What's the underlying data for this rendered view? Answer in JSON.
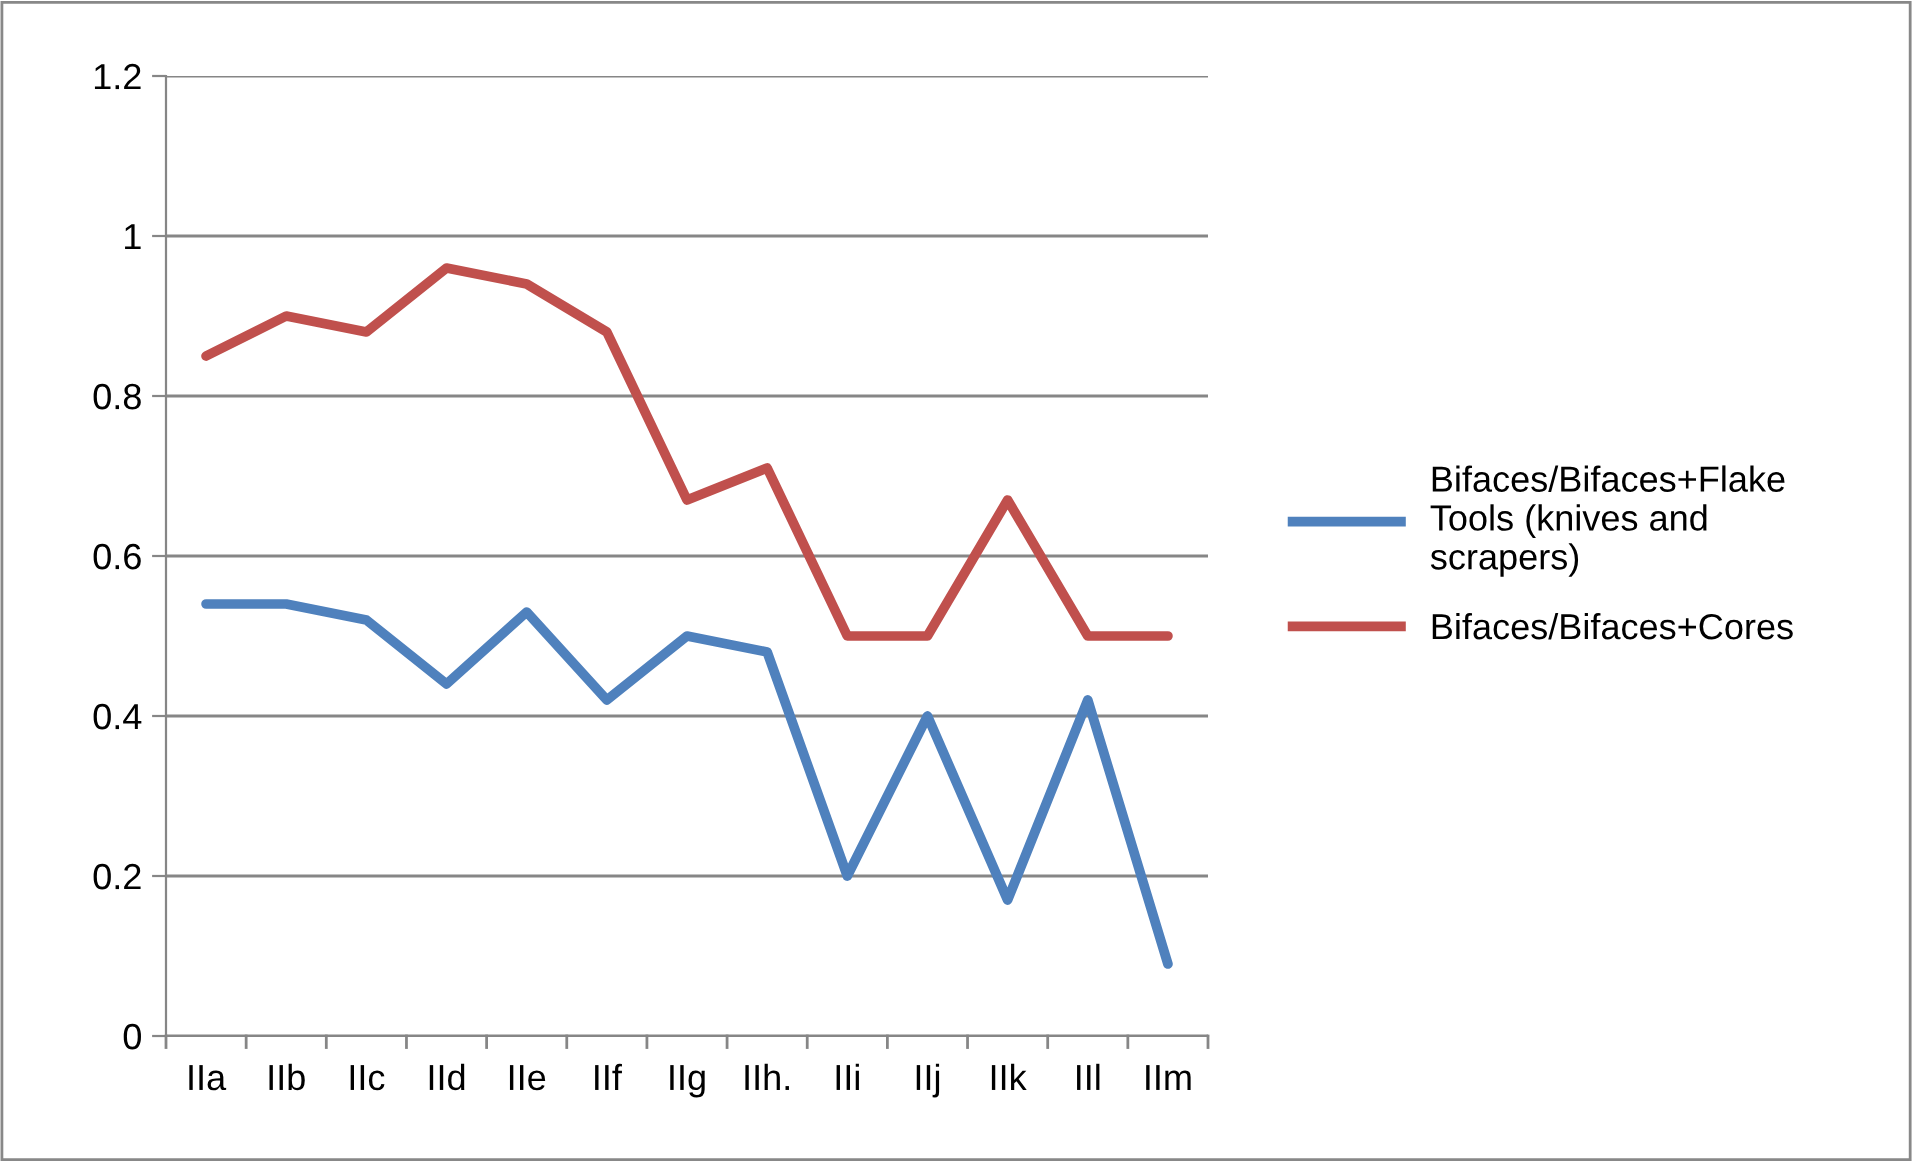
{
  "chart_data": {
    "type": "line",
    "categories": [
      "IIa",
      "IIb",
      "IIc",
      "IId",
      "IIe",
      "IIf",
      "IIg",
      "IIh.",
      "IIi",
      "IIj",
      "IIk",
      "IIl",
      "IIm"
    ],
    "series": [
      {
        "name": "Bifaces/Bifaces+Flake Tools (knives and scrapers)",
        "color": "#4f81bd",
        "values": [
          0.54,
          0.54,
          0.52,
          0.44,
          0.53,
          0.42,
          0.5,
          0.48,
          0.2,
          0.4,
          0.17,
          0.42,
          0.09
        ]
      },
      {
        "name": "Bifaces/Bifaces+Cores",
        "color": "#c0504d",
        "values": [
          0.85,
          0.9,
          0.88,
          0.96,
          0.94,
          0.88,
          0.67,
          0.71,
          0.5,
          0.5,
          0.67,
          0.5,
          0.5
        ]
      }
    ],
    "ylim": [
      0,
      1.2
    ],
    "yticks": [
      0,
      0.2,
      0.4,
      0.6,
      0.8,
      1,
      1.2
    ],
    "grid": "y",
    "legend": "right",
    "marker": "none",
    "line_style": "solid"
  }
}
